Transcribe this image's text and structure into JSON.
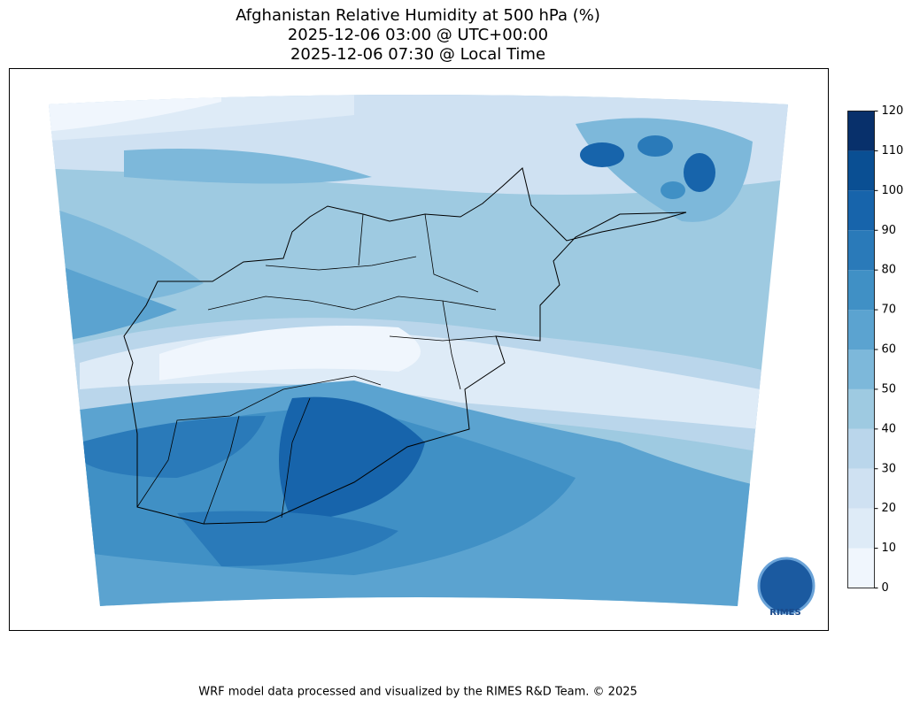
{
  "header": {
    "title": "Afghanistan Relative Humidity at 500 hPa (%)",
    "time_utc": "2025-12-06 03:00 @ UTC+00:00",
    "time_local": "2025-12-06 07:30 @ Local Time"
  },
  "colorbar": {
    "ticks": [
      0,
      10,
      20,
      30,
      40,
      50,
      60,
      70,
      80,
      90,
      100,
      110,
      120
    ],
    "colors": [
      "#f0f6fd",
      "#deebf7",
      "#cfe1f2",
      "#bad6eb",
      "#9ecae1",
      "#7db8da",
      "#5ba3d0",
      "#4090c5",
      "#2a7ab9",
      "#1764ab",
      "#0a4f93",
      "#08306b"
    ]
  },
  "logo": "RIMES",
  "footer": "WRF model data processed and visualized by the RIMES R&D Team. © 2025"
}
